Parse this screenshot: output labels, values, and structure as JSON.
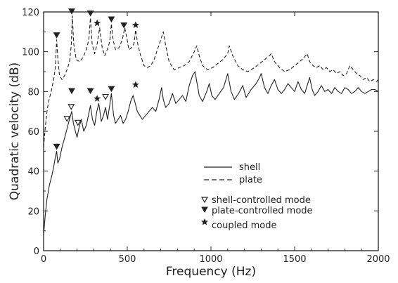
{
  "chart_data": {
    "type": "line",
    "xlabel": "Frequency (Hz)",
    "ylabel": "Quadratic velocity (dB)",
    "xlim": [
      0,
      2000
    ],
    "ylim": [
      0,
      120
    ],
    "x_ticks": [
      0,
      500,
      1000,
      1500,
      2000
    ],
    "y_ticks": [
      0,
      20,
      40,
      60,
      80,
      100,
      120
    ],
    "x_tick_labels": [
      "0",
      "500",
      "1000",
      "1500",
      "2000"
    ],
    "y_tick_labels": [
      "0",
      "20",
      "40",
      "60",
      "80",
      "100",
      "120"
    ],
    "grid": false,
    "legend_placement": "lower-right",
    "series": [
      {
        "name": "shell",
        "style": "solid",
        "color": "#222222",
        "x": [
          0,
          10,
          20,
          35,
          50,
          60,
          70,
          78,
          85,
          95,
          110,
          130,
          145,
          158,
          168,
          178,
          190,
          200,
          212,
          225,
          240,
          255,
          268,
          280,
          292,
          305,
          318,
          330,
          345,
          358,
          370,
          382,
          395,
          405,
          418,
          430,
          445,
          460,
          475,
          490,
          505,
          520,
          535,
          548,
          560,
          575,
          590,
          610,
          630,
          650,
          670,
          690,
          705,
          715,
          730,
          750,
          770,
          790,
          810,
          830,
          850,
          870,
          890,
          905,
          915,
          930,
          950,
          975,
          990,
          1005,
          1025,
          1050,
          1075,
          1100,
          1120,
          1140,
          1165,
          1190,
          1210,
          1240,
          1270,
          1290,
          1300,
          1320,
          1340,
          1360,
          1380,
          1400,
          1420,
          1440,
          1460,
          1480,
          1500,
          1520,
          1540,
          1560,
          1575,
          1590,
          1605,
          1620,
          1640,
          1660,
          1680,
          1700,
          1720,
          1740,
          1760,
          1780,
          1800,
          1820,
          1840,
          1860,
          1880,
          1900,
          1920,
          1940,
          1960,
          1980,
          2000
        ],
        "values": [
          8,
          18,
          26,
          33,
          38,
          42,
          47,
          50,
          44,
          46,
          52,
          58,
          63,
          67,
          70,
          64,
          60,
          57,
          62,
          66,
          60,
          63,
          68,
          73,
          66,
          63,
          70,
          74,
          65,
          68,
          72,
          66,
          73,
          79,
          68,
          64,
          66,
          68,
          64,
          66,
          70,
          75,
          78,
          74,
          70,
          68,
          66,
          68,
          70,
          72,
          70,
          76,
          82,
          76,
          72,
          74,
          79,
          74,
          76,
          78,
          75,
          83,
          88,
          90,
          85,
          78,
          75,
          80,
          84,
          78,
          76,
          79,
          82,
          89,
          80,
          76,
          79,
          83,
          77,
          81,
          84,
          87,
          89,
          82,
          79,
          83,
          86,
          81,
          79,
          81,
          84,
          82,
          80,
          85,
          81,
          79,
          83,
          87,
          81,
          78,
          80,
          83,
          80,
          81,
          79,
          82,
          80,
          79,
          82,
          81,
          79,
          80,
          82,
          80,
          79,
          80,
          81,
          81,
          80
        ]
      },
      {
        "name": "plate",
        "style": "dashed",
        "color": "#222222",
        "x": [
          0,
          10,
          20,
          30,
          45,
          60,
          70,
          78,
          85,
          95,
          110,
          125,
          140,
          155,
          165,
          172,
          180,
          195,
          215,
          235,
          255,
          270,
          280,
          290,
          305,
          320,
          335,
          350,
          365,
          380,
          395,
          405,
          415,
          430,
          450,
          470,
          485,
          495,
          510,
          525,
          540,
          550,
          562,
          580,
          600,
          620,
          640,
          660,
          680,
          700,
          715,
          730,
          750,
          780,
          810,
          840,
          870,
          900,
          915,
          930,
          950,
          980,
          1010,
          1040,
          1070,
          1100,
          1110,
          1130,
          1160,
          1190,
          1220,
          1260,
          1290,
          1320,
          1350,
          1360,
          1380,
          1410,
          1440,
          1470,
          1500,
          1530,
          1555,
          1575,
          1590,
          1610,
          1630,
          1650,
          1670,
          1690,
          1710,
          1730,
          1750,
          1770,
          1790,
          1810,
          1830,
          1850,
          1870,
          1890,
          1910,
          1930,
          1950,
          1970,
          1990,
          2000
        ],
        "values": [
          52,
          62,
          70,
          75,
          80,
          86,
          92,
          106,
          97,
          88,
          86,
          88,
          91,
          95,
          103,
          118,
          104,
          96,
          95,
          97,
          101,
          106,
          117,
          104,
          99,
          104,
          112,
          102,
          98,
          101,
          105,
          114,
          106,
          101,
          102,
          106,
          112,
          108,
          101,
          102,
          104,
          111,
          104,
          98,
          93,
          92,
          93,
          96,
          101,
          106,
          110,
          103,
          95,
          91,
          92,
          93,
          95,
          100,
          103,
          98,
          93,
          91,
          92,
          94,
          96,
          99,
          103,
          98,
          93,
          91,
          90,
          92,
          94,
          96,
          98,
          99,
          95,
          92,
          90,
          91,
          93,
          95,
          97,
          99,
          95,
          93,
          92,
          93,
          91,
          92,
          90,
          91,
          89,
          90,
          88,
          89,
          93,
          91,
          89,
          88,
          86,
          87,
          85,
          86,
          85,
          86
        ]
      }
    ],
    "markers": [
      {
        "kind": "shell-controlled",
        "x": [
          140,
          165,
          205,
          370
        ],
        "y": [
          64,
          70,
          62,
          75
        ]
      },
      {
        "kind": "plate-controlled",
        "x": [
          78,
          168,
          280,
          405,
          480,
          78,
          168,
          280,
          405
        ],
        "y": [
          106,
          118,
          117,
          114,
          111,
          50,
          78,
          78,
          79
        ]
      },
      {
        "kind": "coupled",
        "x": [
          320,
          550,
          320,
          550
        ],
        "y": [
          112,
          111,
          74,
          81
        ]
      }
    ],
    "legend": {
      "lines": [
        {
          "label": "shell",
          "style": "solid"
        },
        {
          "label": "plate",
          "style": "dashed"
        }
      ],
      "symbols": [
        {
          "label": "shell-controlled mode",
          "symbol": "open-triangle-down"
        },
        {
          "label": "plate-controlled mode",
          "symbol": "filled-triangle-down"
        },
        {
          "label": "coupled mode",
          "symbol": "star"
        }
      ]
    }
  }
}
